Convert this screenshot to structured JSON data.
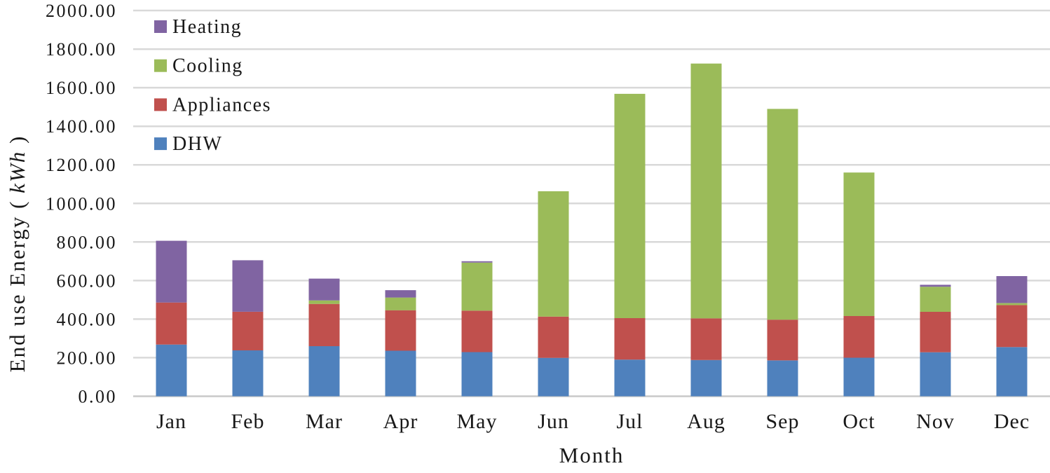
{
  "chart_data": {
    "type": "bar",
    "stacked": true,
    "xlabel": "Month",
    "ylabel_prefix": "End use Energy (",
    "ylabel_unit": "kWh",
    "ylabel_suffix": ")",
    "categories": [
      "Jan",
      "Feb",
      "Mar",
      "Apr",
      "May",
      "Jun",
      "Jul",
      "Aug",
      "Sep",
      "Oct",
      "Nov",
      "Dec"
    ],
    "series": [
      {
        "name": "DHW",
        "color": "#4F81BD",
        "values": [
          268,
          238,
          260,
          236,
          229,
          199,
          190,
          188,
          186,
          200,
          228,
          255
        ]
      },
      {
        "name": "Appliances",
        "color": "#C0504D",
        "values": [
          218,
          200,
          219,
          210,
          215,
          214,
          215,
          216,
          211,
          216,
          210,
          218
        ]
      },
      {
        "name": "Cooling",
        "color": "#9BBB59",
        "values": [
          0,
          0,
          18,
          66,
          249,
          650,
          1163,
          1321,
          1093,
          744,
          130,
          10
        ]
      },
      {
        "name": "Heating",
        "color": "#8064A2",
        "values": [
          320,
          267,
          113,
          38,
          7,
          0,
          0,
          0,
          0,
          0,
          10,
          140
        ]
      }
    ],
    "stack_totals": [
      806,
      705,
      610,
      550,
      700,
      1063,
      1568,
      1725,
      1490,
      1160,
      578,
      623
    ],
    "legend": {
      "position": "top-left-inside",
      "entries": [
        "Heating",
        "Cooling",
        "Appliances",
        "DHW"
      ]
    },
    "y_axis": {
      "min": 0,
      "max": 2000,
      "step": 200,
      "tick_labels": [
        "0.00",
        "200.00",
        "400.00",
        "600.00",
        "800.00",
        "1000.00",
        "1200.00",
        "1400.00",
        "1600.00",
        "1800.00",
        "2000.00"
      ]
    },
    "grid": {
      "show": true,
      "gridline_color": "#D9D9D9",
      "zero_line_color": "#C9C9C9"
    },
    "background_color": "#FFFFFF",
    "text_color": "#181818"
  }
}
